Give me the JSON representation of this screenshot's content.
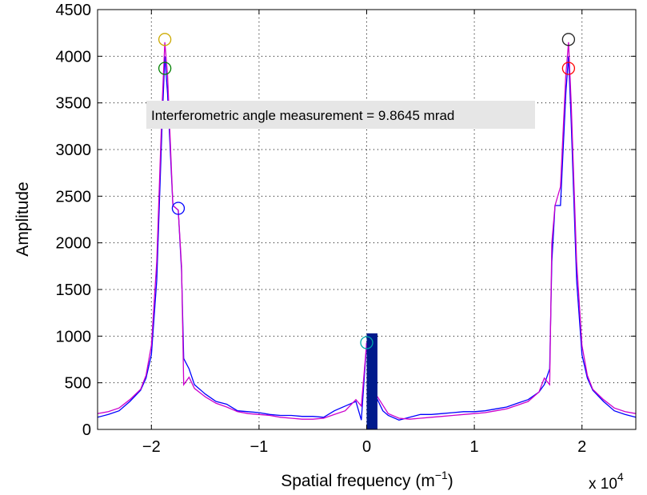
{
  "chart_data": {
    "type": "line",
    "title": "",
    "xlabel": "Spatial frequency (m",
    "xlabel_sup": "−1",
    "xlabel_close": ")",
    "ylabel": "Amplitude",
    "x_multiplier": "x 10",
    "x_multiplier_exp": "4",
    "xlim": [
      -2.5,
      2.5
    ],
    "ylim": [
      0,
      4500
    ],
    "x_ticks": [
      -2,
      -1,
      0,
      1,
      2
    ],
    "x_tick_labels": [
      "−2",
      "−1",
      "0",
      "1",
      "2"
    ],
    "y_ticks": [
      0,
      500,
      1000,
      1500,
      2000,
      2500,
      3000,
      3500,
      4000,
      4500
    ],
    "y_tick_labels": [
      "0",
      "500",
      "1000",
      "1500",
      "2000",
      "2500",
      "3000",
      "3500",
      "4000",
      "4500"
    ],
    "grid": true,
    "annotation": "Interferometric angle measurement = 9.8645 mrad",
    "series": [
      {
        "color": "#0000ff",
        "x": [
          -2.5,
          -2.4,
          -2.3,
          -2.2,
          -2.1,
          -2.05,
          -2.0,
          -1.95,
          -1.9,
          -1.875,
          -1.85,
          -1.8,
          -1.75,
          -1.72,
          -1.7,
          -1.65,
          -1.6,
          -1.5,
          -1.4,
          -1.3,
          -1.2,
          -1.1,
          -1.0,
          -0.9,
          -0.8,
          -0.7,
          -0.6,
          -0.5,
          -0.4,
          -0.3,
          -0.2,
          -0.1,
          -0.05,
          0.0,
          0.05,
          0.1,
          0.15,
          0.2,
          0.3,
          0.4,
          0.5,
          0.6,
          0.7,
          0.8,
          0.9,
          1.0,
          1.1,
          1.2,
          1.3,
          1.4,
          1.5,
          1.6,
          1.65,
          1.7,
          1.72,
          1.75,
          1.8,
          1.85,
          1.875,
          1.9,
          1.95,
          2.0,
          2.05,
          2.1,
          2.2,
          2.3,
          2.4,
          2.5
        ],
        "y": [
          130,
          160,
          200,
          300,
          420,
          550,
          800,
          1600,
          3300,
          4000,
          3600,
          2400,
          2350,
          1700,
          760,
          650,
          480,
          380,
          300,
          270,
          200,
          190,
          180,
          160,
          150,
          150,
          140,
          140,
          130,
          200,
          250,
          300,
          100,
          930,
          250,
          320,
          200,
          150,
          100,
          130,
          160,
          160,
          170,
          180,
          190,
          190,
          200,
          220,
          240,
          280,
          320,
          400,
          480,
          650,
          1800,
          2400,
          2400,
          3600,
          4000,
          3300,
          1600,
          800,
          550,
          420,
          300,
          200,
          160,
          130
        ]
      },
      {
        "color": "#cc00cc",
        "x": [
          -2.5,
          -2.4,
          -2.3,
          -2.2,
          -2.1,
          -2.05,
          -2.0,
          -1.95,
          -1.9,
          -1.875,
          -1.85,
          -1.8,
          -1.75,
          -1.72,
          -1.7,
          -1.65,
          -1.6,
          -1.5,
          -1.4,
          -1.3,
          -1.2,
          -1.1,
          -1.0,
          -0.9,
          -0.8,
          -0.7,
          -0.6,
          -0.5,
          -0.4,
          -0.3,
          -0.2,
          -0.1,
          -0.05,
          0.0,
          0.05,
          0.1,
          0.15,
          0.2,
          0.3,
          0.4,
          0.5,
          0.6,
          0.7,
          0.8,
          0.9,
          1.0,
          1.1,
          1.2,
          1.3,
          1.4,
          1.5,
          1.6,
          1.65,
          1.7,
          1.72,
          1.75,
          1.8,
          1.85,
          1.875,
          1.9,
          1.95,
          2.0,
          2.05,
          2.1,
          2.2,
          2.3,
          2.4,
          2.5
        ],
        "y": [
          170,
          190,
          230,
          320,
          430,
          580,
          900,
          1800,
          3500,
          4150,
          3800,
          2400,
          2350,
          1750,
          480,
          560,
          440,
          350,
          280,
          240,
          190,
          170,
          160,
          150,
          130,
          120,
          110,
          110,
          120,
          160,
          200,
          320,
          250,
          930,
          320,
          350,
          260,
          170,
          120,
          110,
          120,
          130,
          140,
          150,
          160,
          170,
          180,
          200,
          220,
          260,
          300,
          400,
          550,
          480,
          2000,
          2400,
          2600,
          3800,
          4150,
          3500,
          1800,
          900,
          580,
          430,
          320,
          230,
          190,
          170
        ]
      }
    ],
    "markers": [
      {
        "x": -1.875,
        "y": 4180,
        "color": "#ccaa00"
      },
      {
        "x": -1.875,
        "y": 3870,
        "color": "#008000"
      },
      {
        "x": -1.75,
        "y": 2370,
        "color": "#0000ff"
      },
      {
        "x": 0.0,
        "y": 930,
        "color": "#00aaaa"
      },
      {
        "x": 1.875,
        "y": 4180,
        "color": "#222222"
      },
      {
        "x": 1.875,
        "y": 3870,
        "color": "#ff0000"
      }
    ],
    "bar": {
      "x_start": 0.0,
      "x_end": 0.1,
      "y": 1030,
      "color": "#001a8c"
    }
  }
}
